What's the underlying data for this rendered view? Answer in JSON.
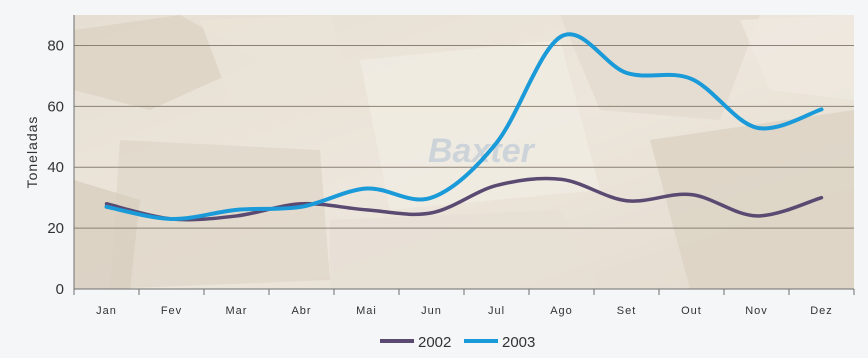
{
  "chart_data": {
    "type": "line",
    "categories": [
      "Jan",
      "Fev",
      "Mar",
      "Abr",
      "Mai",
      "Jun",
      "Jul",
      "Ago",
      "Set",
      "Out",
      "Nov",
      "Dez"
    ],
    "series": [
      {
        "name": "2002",
        "color": "#5a4a72",
        "values": [
          28,
          23,
          24,
          28,
          26,
          25,
          34,
          36,
          29,
          31,
          24,
          30
        ]
      },
      {
        "name": "2003",
        "color": "#1a9ad8",
        "values": [
          27,
          23,
          26,
          27,
          33,
          30,
          48,
          83,
          71,
          69,
          53,
          59
        ]
      }
    ],
    "ylabel": "Toneladas",
    "xlabel": "",
    "ylim": [
      0,
      90
    ],
    "yticks": [
      0,
      20,
      40,
      60,
      80
    ],
    "grid": true,
    "legend_position": "bottom-center",
    "background_image": "cardboard-boxes-photo",
    "background_logo_text": "Baxter"
  }
}
